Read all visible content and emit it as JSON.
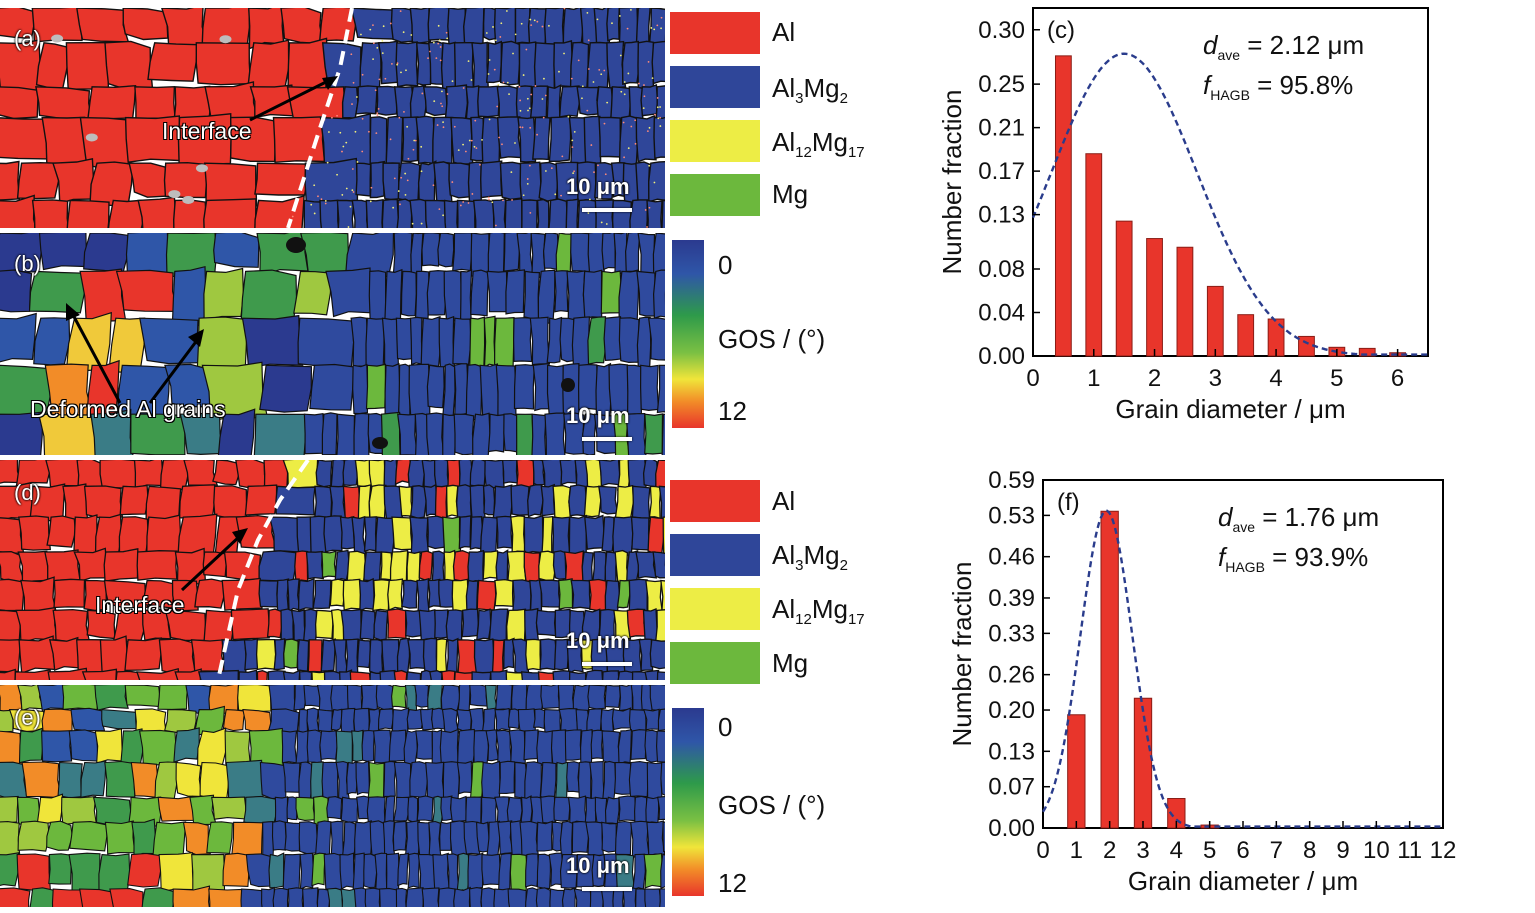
{
  "panels": {
    "a": {
      "label": "(a)",
      "callout": "Interface",
      "scale": "10 μm"
    },
    "b": {
      "label": "(b)",
      "callout": "Deformed Al grains",
      "scale": "10 μm"
    },
    "d": {
      "label": "(d)",
      "callout": "Interface",
      "scale": "10 μm"
    },
    "e": {
      "label": "(e)",
      "scale": "10 μm"
    }
  },
  "phase_legend": {
    "items": [
      {
        "name": "Al",
        "color": "#e8352b"
      },
      {
        "name": "Al3Mg2",
        "color": "#2f4699"
      },
      {
        "name": "Al12Mg17",
        "color": "#eded45"
      },
      {
        "name": "Mg",
        "color": "#6cb83d"
      }
    ]
  },
  "gos_legend": {
    "min": "0",
    "max": "12",
    "label": "GOS / (°)"
  },
  "colors": {
    "al": "#e8352b",
    "al3mg2": "#2f4699",
    "al12mg17": "#eded45",
    "mg": "#6cb83d",
    "gos_green": "#3f9a4c",
    "gos_teal": "#3a7c86"
  },
  "chart_data": [
    {
      "type": "bar",
      "panel": "(c)",
      "xlabel": "Grain diameter / μm",
      "ylabel": "Number fraction",
      "xlim": [
        0,
        6.5
      ],
      "ylim": [
        0,
        0.32
      ],
      "xticks": [
        0,
        1,
        2,
        3,
        4,
        5,
        6
      ],
      "yticks": [
        0.0,
        0.04,
        0.08,
        0.13,
        0.17,
        0.21,
        0.25,
        0.3
      ],
      "ytick_labels": [
        "0.00",
        "0.04",
        "0.08",
        "0.13",
        "0.17",
        "0.21",
        "0.25",
        "0.30"
      ],
      "x": [
        0.5,
        1.0,
        1.5,
        2.0,
        2.5,
        3.0,
        3.5,
        4.0,
        4.5,
        5.0,
        5.5,
        6.0
      ],
      "values": [
        0.276,
        0.186,
        0.124,
        0.108,
        0.1,
        0.064,
        0.038,
        0.034,
        0.018,
        0.008,
        0.007,
        0.003
      ],
      "fit_curve": {
        "type": "lognormal-like",
        "peak_x": 1.5,
        "peak_y": 0.278
      },
      "annotation": {
        "d_ave": "2.12 μm",
        "f_HAGB": "95.8%"
      }
    },
    {
      "type": "bar",
      "panel": "(f)",
      "xlabel": "Grain diameter / μm",
      "ylabel": "Number fraction",
      "xlim": [
        0,
        12
      ],
      "ylim": [
        0,
        0.59
      ],
      "xticks": [
        0,
        1,
        2,
        3,
        4,
        5,
        6,
        7,
        8,
        9,
        10,
        11,
        12
      ],
      "yticks": [
        0.0,
        0.07,
        0.13,
        0.2,
        0.26,
        0.33,
        0.39,
        0.46,
        0.53,
        0.59
      ],
      "ytick_labels": [
        "0.00",
        "0.07",
        "0.13",
        "0.20",
        "0.26",
        "0.33",
        "0.39",
        "0.46",
        "0.53",
        "0.59"
      ],
      "x": [
        1.0,
        2.0,
        3.0,
        4.0,
        5.0
      ],
      "values": [
        0.192,
        0.537,
        0.22,
        0.05,
        0.005
      ],
      "fit_curve": {
        "type": "gaussian",
        "peak_x": 1.9,
        "peak_y": 0.538
      },
      "annotation": {
        "d_ave": "1.76 μm",
        "f_HAGB": "93.9%"
      }
    }
  ]
}
